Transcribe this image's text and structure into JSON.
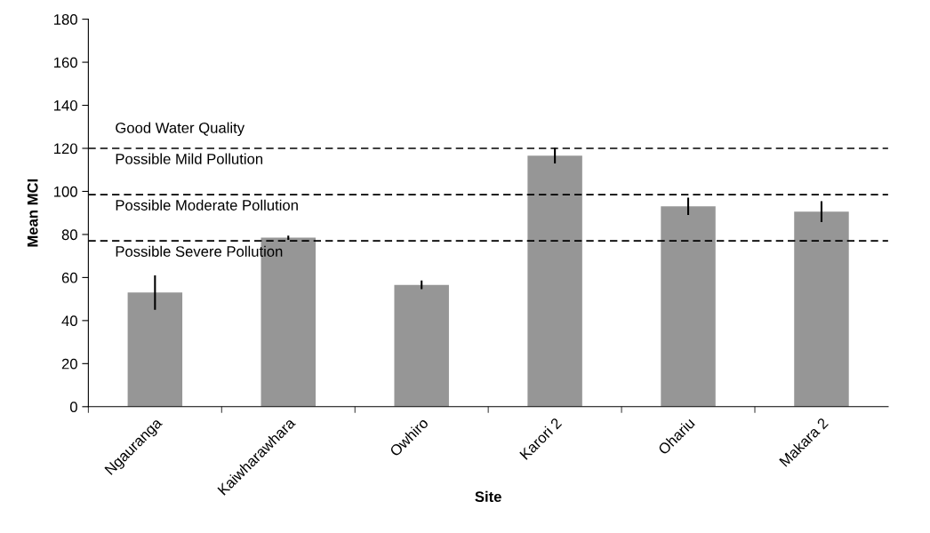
{
  "chart_data": {
    "type": "bar",
    "xlabel": "Site",
    "ylabel": "Mean MCI",
    "categories": [
      "Ngauranga",
      "Kaiwharawhara",
      "Owhiro",
      "Karori 2",
      "Ohariu",
      "Makara 2"
    ],
    "values": [
      53,
      78.5,
      56.6,
      116.6,
      93.1,
      90.6
    ],
    "errors": [
      8,
      1,
      2,
      3.6,
      4,
      4.8
    ],
    "color": "#969696",
    "ylim": [
      0,
      180
    ],
    "yticks": [
      0,
      20,
      40,
      60,
      80,
      100,
      120,
      140,
      160,
      180
    ],
    "ref_lines": [
      {
        "axis": "y",
        "value": 120,
        "line_style": "dashed",
        "color": "#000000"
      },
      {
        "axis": "y",
        "value": 98.5,
        "line_style": "dashed",
        "color": "#000000"
      },
      {
        "axis": "y",
        "value": 77,
        "line_style": "dashed",
        "color": "#000000"
      }
    ],
    "annotations": [
      "Good Water Quality",
      "Possible Mild Pollution",
      "Possible Moderate Pollution",
      "Possible Severe Pollution"
    ],
    "grid": false,
    "legend": false
  }
}
